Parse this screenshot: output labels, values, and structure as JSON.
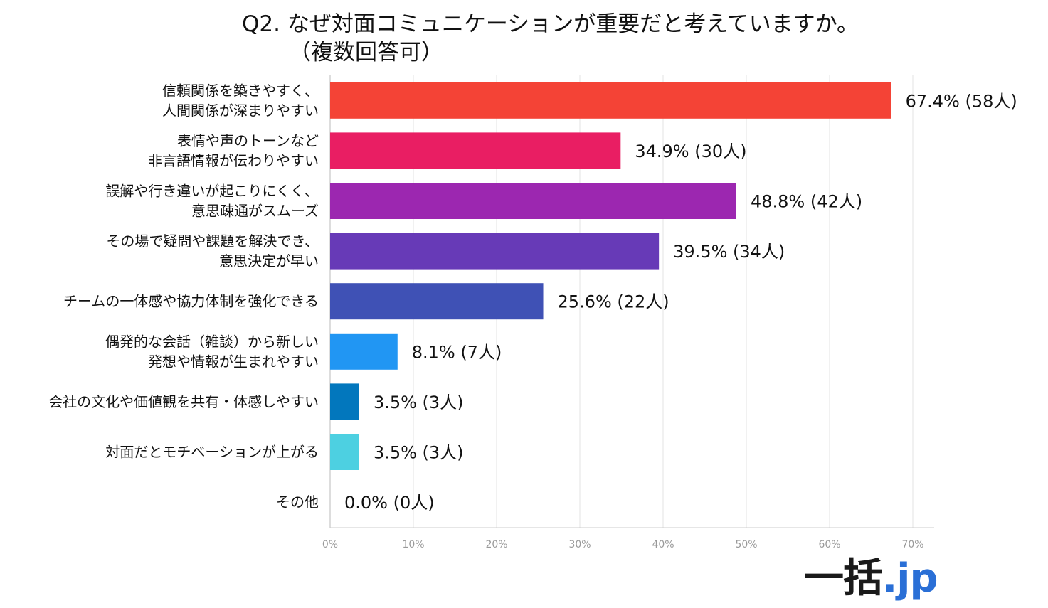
{
  "title": "Q2.  なぜ対面コミュニケーションが重要だと考えていますか。",
  "subtitle": "（複数回答可）",
  "logo": {
    "kanji": "一括",
    "domain": ".jp"
  },
  "chart_data": {
    "type": "bar",
    "orientation": "horizontal",
    "categories": [
      [
        "信頼関係を築きやすく、",
        "人間関係が深まりやすい"
      ],
      [
        "表情や声のトーンなど",
        "非言語情報が伝わりやすい"
      ],
      [
        "誤解や行き違いが起こりにくく、",
        "意思疎通がスムーズ"
      ],
      [
        "その場で疑問や課題を解決でき、",
        "意思決定が早い"
      ],
      [
        "チームの一体感や協力体制を強化できる"
      ],
      [
        "偶発的な会話（雑談）から新しい",
        "発想や情報が生まれやすい"
      ],
      [
        "会社の文化や価値観を共有・体感しやすい"
      ],
      [
        "対面だとモチベーションが上がる"
      ],
      [
        "その他"
      ]
    ],
    "values": [
      67.4,
      34.9,
      48.8,
      39.5,
      25.6,
      8.1,
      3.5,
      3.5,
      0.0
    ],
    "data_labels": [
      "67.4% (58人)",
      "34.9% (30人)",
      "48.8% (42人)",
      "39.5% (34人)",
      "25.6% (22人)",
      "8.1% (7人)",
      "3.5% (3人)",
      "3.5% (3人)",
      "0.0% (0人)"
    ],
    "colors": [
      "#f44336",
      "#e91e63",
      "#9c27b0",
      "#673ab7",
      "#3f51b5",
      "#2196f3",
      "#0277bd",
      "#4dd0e1",
      "#26a69a"
    ],
    "xlim": [
      0,
      70
    ],
    "xticks": [
      "0%",
      "10%",
      "20%",
      "30%",
      "40%",
      "50%",
      "60%",
      "70%"
    ],
    "grid": true
  }
}
